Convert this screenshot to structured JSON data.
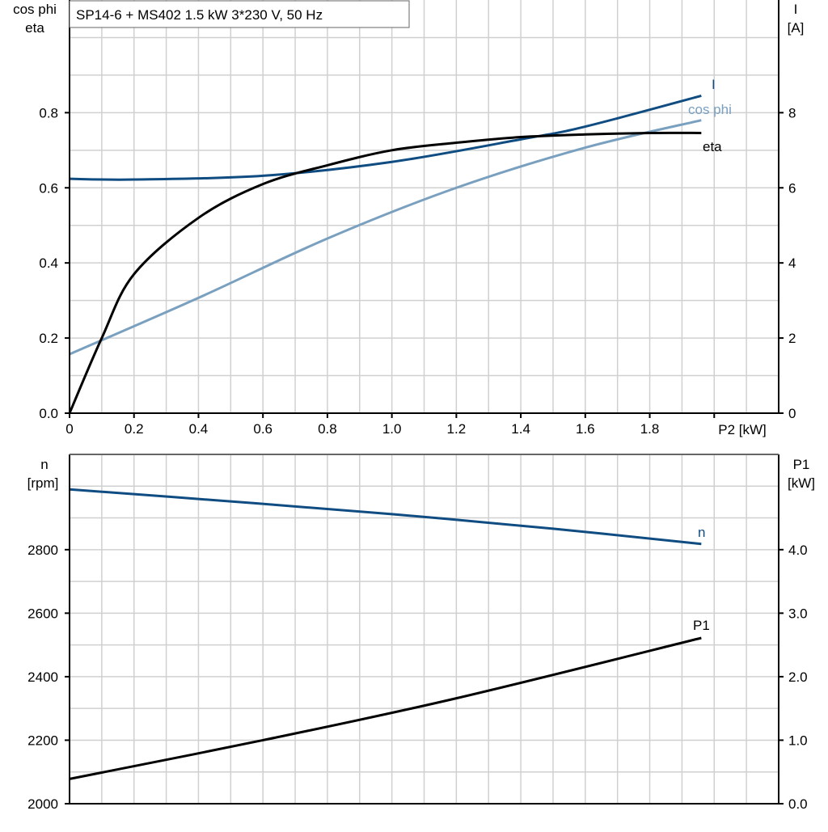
{
  "title": "SP14-6 + MS402   1.5 kW   3*230 V, 50 Hz",
  "colors": {
    "I": "#0f4c81",
    "cos_phi": "#7aa0c0",
    "eta": "#000000",
    "n": "#0f4c81",
    "P1": "#000000",
    "grid": "#d0d0d0"
  },
  "chart_data": [
    {
      "type": "line",
      "xlabel": "P2 [kW]",
      "xlim": [
        0,
        2.2
      ],
      "xticks": [
        "0",
        "0.2",
        "0.4",
        "0.6",
        "0.8",
        "1.0",
        "1.2",
        "1.4",
        "1.6",
        "1.8"
      ],
      "xtick_values": [
        0,
        0.2,
        0.4,
        0.6,
        0.8,
        1.0,
        1.2,
        1.4,
        1.6,
        1.8
      ],
      "ylabel_left": [
        "cos phi",
        "eta"
      ],
      "ylim_left": [
        0,
        1.1
      ],
      "yticks_left": [
        "0.0",
        "0.2",
        "0.4",
        "0.6",
        "0.8"
      ],
      "ylabel_right": [
        "I",
        "[A]"
      ],
      "ylim_right": [
        0,
        11
      ],
      "yticks_right": [
        "0",
        "2",
        "4",
        "6",
        "8"
      ],
      "grid": true,
      "series": [
        {
          "name": "I",
          "axis": "right",
          "x": [
            0,
            0.2,
            0.6,
            1.0,
            1.4,
            1.6,
            1.96
          ],
          "y": [
            6.24,
            6.22,
            6.32,
            6.69,
            7.29,
            7.63,
            8.45
          ]
        },
        {
          "name": "cos phi",
          "axis": "left",
          "x": [
            0,
            0.4,
            0.8,
            1.2,
            1.6,
            1.96
          ],
          "y": [
            0.157,
            0.307,
            0.465,
            0.6,
            0.707,
            0.78
          ]
        },
        {
          "name": "eta",
          "axis": "left",
          "x": [
            0,
            0.1,
            0.2,
            0.4,
            0.6,
            0.8,
            1.0,
            1.2,
            1.4,
            1.6,
            1.8,
            1.96
          ],
          "y": [
            0,
            0.2,
            0.37,
            0.52,
            0.61,
            0.66,
            0.7,
            0.72,
            0.735,
            0.742,
            0.746,
            0.746
          ]
        }
      ]
    },
    {
      "type": "line",
      "xlim": [
        0,
        2.2
      ],
      "ylabel_left": [
        "n",
        "[rpm]"
      ],
      "ylim_left": [
        2000,
        3100
      ],
      "yticks_left": [
        "2000",
        "2200",
        "2400",
        "2600",
        "2800"
      ],
      "ylabel_right": [
        "P1",
        "[kW]"
      ],
      "ylim_right": [
        0,
        5.5
      ],
      "yticks_right": [
        "0.0",
        "1.0",
        "2.0",
        "3.0",
        "4.0"
      ],
      "grid": true,
      "series": [
        {
          "name": "n",
          "axis": "left",
          "x": [
            0,
            0.5,
            1.0,
            1.5,
            1.96
          ],
          "y": [
            2990,
            2952,
            2912,
            2866,
            2818
          ]
        },
        {
          "name": "P1",
          "axis": "right",
          "x": [
            0,
            0.6,
            1.2,
            1.96
          ],
          "y": [
            0.39,
            1.0,
            1.66,
            2.61
          ]
        }
      ]
    }
  ]
}
